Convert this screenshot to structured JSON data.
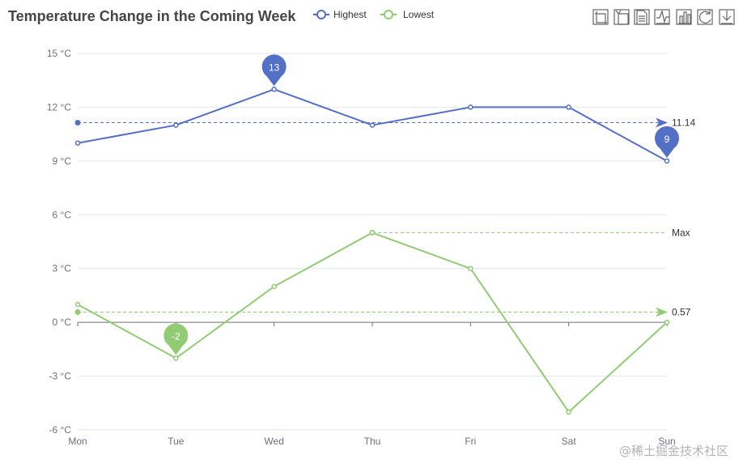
{
  "chart_data": {
    "type": "line",
    "title": "Temperature Change in the Coming Week",
    "categories": [
      "Mon",
      "Tue",
      "Wed",
      "Thu",
      "Fri",
      "Sat",
      "Sun"
    ],
    "y_tick_labels": [
      "15 °C",
      "12 °C",
      "9 °C",
      "6 °C",
      "3 °C",
      "0 °C",
      "-3 °C",
      "-6 °C"
    ],
    "ylim": [
      -6,
      15
    ],
    "y_ticks": [
      15,
      12,
      9,
      6,
      3,
      0,
      -3,
      -6
    ],
    "grid": true,
    "legend": {
      "placement": "top",
      "entries": [
        "Highest",
        "Lowest"
      ]
    },
    "series": [
      {
        "name": "Highest",
        "color": "#5470c6",
        "values": [
          10,
          11,
          13,
          11,
          12,
          12,
          9
        ],
        "mark_points": [
          {
            "label": "13",
            "category": "Wed",
            "value": 13
          },
          {
            "label": "9",
            "category": "Sun",
            "value": 9
          }
        ],
        "mark_line": {
          "label": "11.14",
          "value": 11.14
        }
      },
      {
        "name": "Lowest",
        "color": "#91cc75",
        "values": [
          1,
          -2,
          2,
          5,
          3,
          -5,
          0
        ],
        "mark_points": [
          {
            "label": "-2",
            "category": "Tue",
            "value": -2
          }
        ],
        "mark_line": {
          "label": "0.57",
          "value": 0.57
        },
        "max_line": {
          "label": "Max",
          "category": "Thu",
          "value": 5
        }
      }
    ]
  },
  "toolbox": {
    "icons": [
      "zoom-icon",
      "zoom-reset-icon",
      "data-view-icon",
      "line-chart-icon",
      "bar-chart-icon",
      "restore-icon",
      "save-image-icon"
    ]
  },
  "watermark": "@稀土掘金技术社区"
}
